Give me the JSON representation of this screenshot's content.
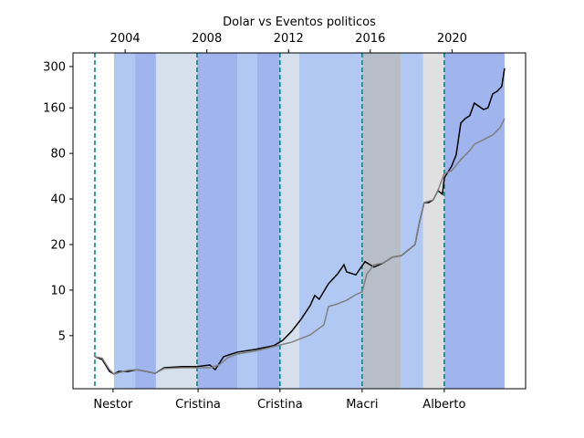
{
  "chart_data": {
    "type": "line",
    "title": "Dolar vs Eventos politicos",
    "log_y": true,
    "xlim": [
      2001.45,
      2023.6
    ],
    "ylim": [
      2.23,
      369
    ],
    "xticks": [
      2004,
      2008,
      2012,
      2016,
      2020
    ],
    "yticks": [
      5,
      10,
      20,
      40,
      80,
      160,
      300
    ],
    "bottom_ticks": [
      {
        "value": 2003.41,
        "label": "Nestor"
      },
      {
        "value": 2007.57,
        "label": "Cristina"
      },
      {
        "value": 2011.58,
        "label": "Cristina"
      },
      {
        "value": 2015.6,
        "label": "Macri"
      },
      {
        "value": 2019.62,
        "label": "Alberto"
      }
    ],
    "events": [
      2002.52,
      2007.52,
      2011.58,
      2015.6,
      2019.62
    ],
    "event_color": "#008080",
    "spans": [
      {
        "start": 2003.46,
        "end": 2004.49,
        "color": "#b0c8f2"
      },
      {
        "start": 2004.49,
        "end": 2005.51,
        "color": "#a0b5ee"
      },
      {
        "start": 2005.51,
        "end": 2007.52,
        "color": "#d6e0ec"
      },
      {
        "start": 2007.52,
        "end": 2009.49,
        "color": "#a0b5ee"
      },
      {
        "start": 2009.49,
        "end": 2010.47,
        "color": "#b0c8f2"
      },
      {
        "start": 2010.47,
        "end": 2011.58,
        "color": "#a0b5ee"
      },
      {
        "start": 2011.58,
        "end": 2012.52,
        "color": "#d6e0ec"
      },
      {
        "start": 2012.52,
        "end": 2015.6,
        "color": "#b0c8f2"
      },
      {
        "start": 2015.6,
        "end": 2017.48,
        "color": "#b8bec8"
      },
      {
        "start": 2017.48,
        "end": 2018.59,
        "color": "#b0c8f2"
      },
      {
        "start": 2018.59,
        "end": 2019.62,
        "color": "#e0e0e0"
      },
      {
        "start": 2019.62,
        "end": 2022.57,
        "color": "#a0b5ee"
      }
    ],
    "series": [
      {
        "color": "#000000",
        "x": [
          2002.52,
          2002.88,
          2003.24,
          2003.46,
          2003.68,
          2004.13,
          2004.58,
          2005.47,
          2005.91,
          2006.81,
          2007.48,
          2008.15,
          2008.41,
          2008.82,
          2009.49,
          2010.38,
          2011.27,
          2011.72,
          2012.16,
          2012.61,
          2013.06,
          2013.28,
          2013.5,
          2013.95,
          2014.4,
          2014.71,
          2014.84,
          2015.29,
          2015.74,
          2016.18,
          2016.63,
          2017.08,
          2017.52,
          2017.97,
          2018.19,
          2018.41,
          2018.64,
          2018.86,
          2019.08,
          2019.31,
          2019.53,
          2019.62,
          2019.98,
          2020.2,
          2020.43,
          2020.65,
          2020.87,
          2021.09,
          2021.54,
          2021.76,
          2021.99,
          2022.21,
          2022.43,
          2022.57
        ],
        "values": [
          3.63,
          3.48,
          2.9,
          2.79,
          2.9,
          2.9,
          2.98,
          2.82,
          3.07,
          3.12,
          3.12,
          3.2,
          2.98,
          3.63,
          3.89,
          4.06,
          4.29,
          4.66,
          5.36,
          6.41,
          7.91,
          9.21,
          8.71,
          11.0,
          12.8,
          14.7,
          13.2,
          12.6,
          15.4,
          14.2,
          15.1,
          16.5,
          16.9,
          18.9,
          20.0,
          28.3,
          37.9,
          37.9,
          39.5,
          45.4,
          43.0,
          55.1,
          65.9,
          78.0,
          127,
          136,
          142,
          172,
          156,
          160,
          198,
          206,
          221,
          292
        ]
      },
      {
        "color": "#808080",
        "x": [
          2002.52,
          2002.88,
          2003.24,
          2003.46,
          2004.13,
          2004.58,
          2005.47,
          2005.91,
          2006.81,
          2008.15,
          2008.59,
          2009.04,
          2009.49,
          2010.38,
          2011.27,
          2012.16,
          2013.06,
          2013.73,
          2013.95,
          2014.4,
          2014.84,
          2015.29,
          2015.6,
          2015.83,
          2016.18,
          2016.63,
          2017.08,
          2017.52,
          2017.97,
          2018.19,
          2018.41,
          2018.64,
          2019.08,
          2019.31,
          2019.62,
          2019.98,
          2020.43,
          2020.87,
          2021.09,
          2021.54,
          2021.99,
          2022.34,
          2022.57
        ],
        "values": [
          3.63,
          3.55,
          2.98,
          2.79,
          2.95,
          2.98,
          2.82,
          3.03,
          3.07,
          3.07,
          3.2,
          3.58,
          3.78,
          3.95,
          4.23,
          4.53,
          5.06,
          5.9,
          7.78,
          8.11,
          8.57,
          9.33,
          9.72,
          12.8,
          14.7,
          15.1,
          16.5,
          16.9,
          18.9,
          20.0,
          28.3,
          37.9,
          39.5,
          45.4,
          59.0,
          61.5,
          72.8,
          83.6,
          92.0,
          98.6,
          106,
          118,
          136
        ]
      }
    ]
  }
}
